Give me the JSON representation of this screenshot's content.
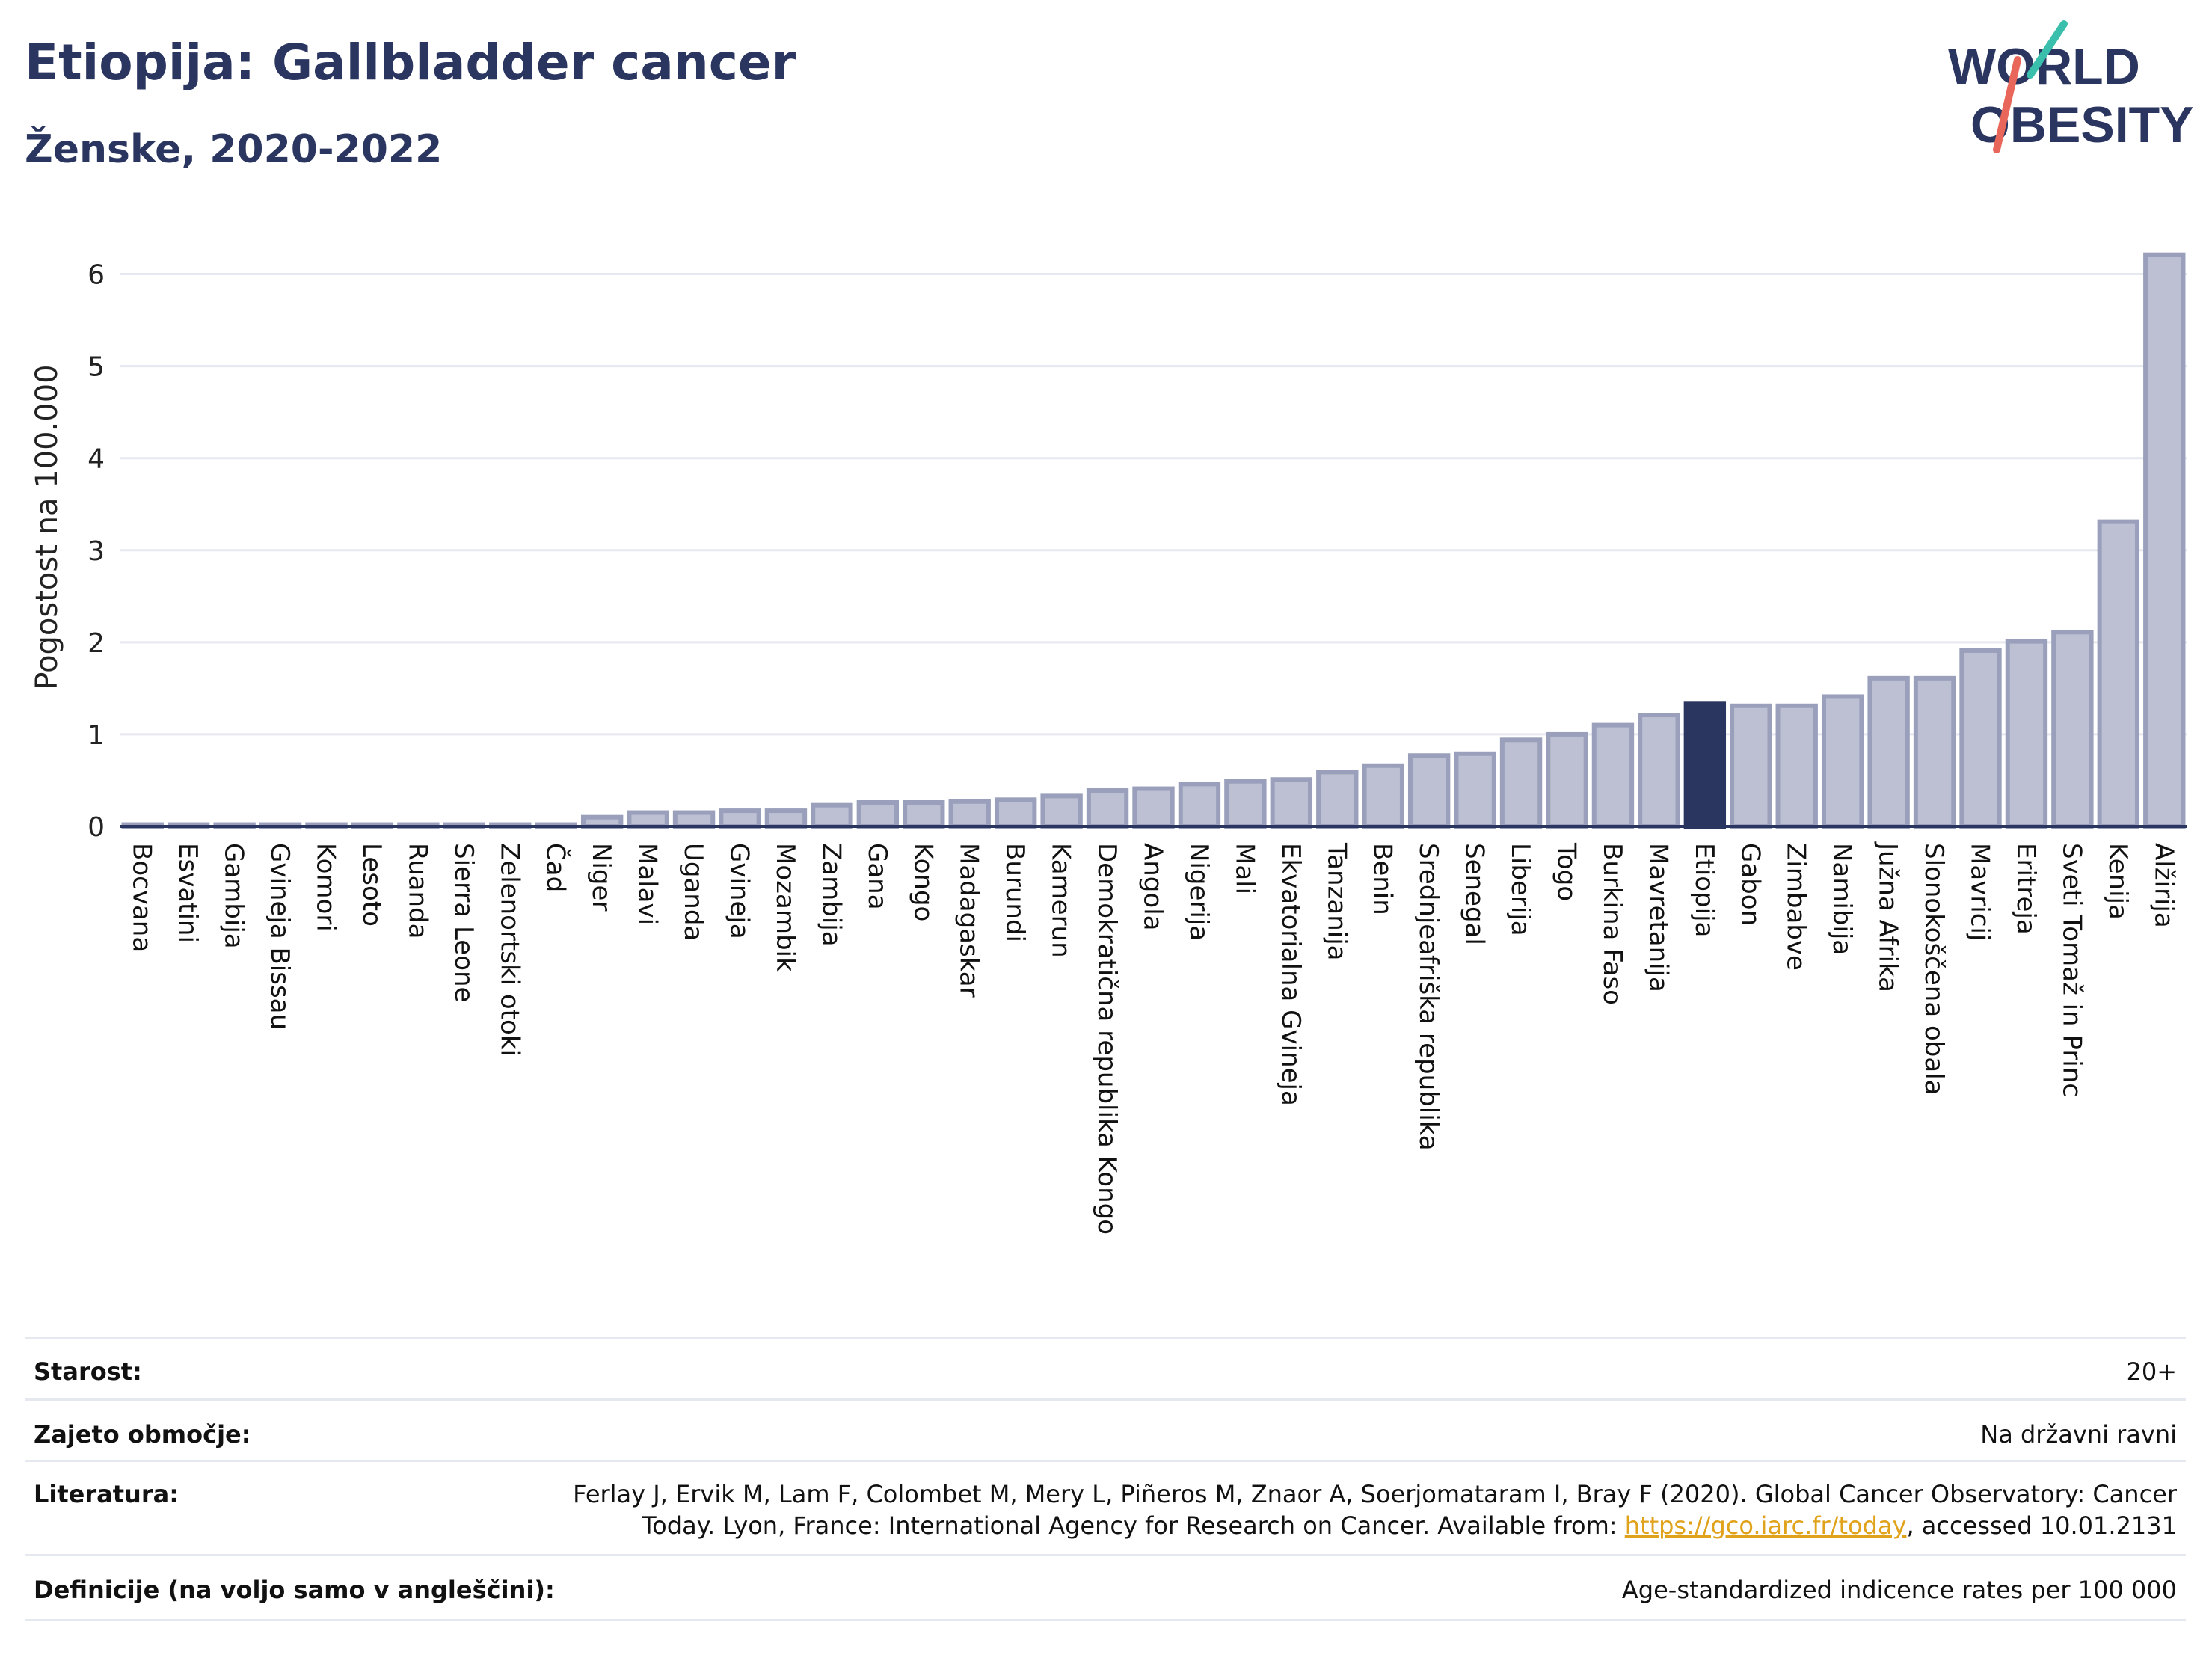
{
  "header": {
    "title": "Etiopija: Gallbladder cancer",
    "subtitle": "Ženske, 2020-2022"
  },
  "logo": {
    "line1": "WORLD",
    "line2": "OBESITY",
    "accent_teal": "#3bbfad",
    "accent_red": "#e8675a",
    "text_color": "#2a3560"
  },
  "colors": {
    "bar": "#bcc0d2",
    "bar_edge": "#9aa0bb",
    "highlight": "#2a3560",
    "grid": "#e6e8f0",
    "axis": "#2a3560"
  },
  "chart_data": {
    "type": "bar",
    "ylabel": "Pogostost na 100.000",
    "ylim": [
      0,
      6.5
    ],
    "yticks": [
      0,
      1,
      2,
      3,
      4,
      5,
      6
    ],
    "grid": true,
    "highlight": "Etiopija",
    "categories": [
      "Bocvana",
      "Esvatini",
      "Gambija",
      "Gvineja Bissau",
      "Komori",
      "Lesoto",
      "Ruanda",
      "Sierra Leone",
      "Zelenortski otoki",
      "Čad",
      "Niger",
      "Malavi",
      "Uganda",
      "Gvineja",
      "Mozambik",
      "Zambija",
      "Gana",
      "Kongo",
      "Madagaskar",
      "Burundi",
      "Kamerun",
      "Demokratična republika Kongo",
      "Angola",
      "Nigerija",
      "Mali",
      "Ekvatorialna Gvineja",
      "Tanzanija",
      "Benin",
      "Srednjeafriška republika",
      "Senegal",
      "Liberija",
      "Togo",
      "Burkina Faso",
      "Mavretanija",
      "Etiopija",
      "Gabon",
      "Zimbabve",
      "Namibija",
      "Južna Afrika",
      "Slonokoščena obala",
      "Mavricij",
      "Eritreja",
      "Sveti Tomaž in Princ",
      "Kenija",
      "Alžirija"
    ],
    "values": [
      0.02,
      0.02,
      0.02,
      0.02,
      0.02,
      0.02,
      0.02,
      0.02,
      0.02,
      0.02,
      0.1,
      0.15,
      0.15,
      0.17,
      0.17,
      0.23,
      0.26,
      0.26,
      0.27,
      0.29,
      0.33,
      0.39,
      0.41,
      0.46,
      0.49,
      0.51,
      0.59,
      0.66,
      0.77,
      0.79,
      0.94,
      1.0,
      1.1,
      1.21,
      1.33,
      1.31,
      1.31,
      1.41,
      1.61,
      1.61,
      1.91,
      2.01,
      2.11,
      3.31,
      6.21
    ]
  },
  "meta": {
    "age_label": "Starost:",
    "age_value": "20+",
    "coverage_label": "Zajeto območje:",
    "coverage_value": "Na državni ravni",
    "reference_label": "Literatura:",
    "reference_line1": "Ferlay J, Ervik M, Lam F, Colombet M, Mery L, Piñeros M, Znaor A, Soerjomataram I, Bray F (2020). Global Cancer Observatory: Cancer",
    "reference_line2_pre": "Today. Lyon, France: International Agency for Research on Cancer. Available from: ",
    "reference_link": "https://gco.iarc.fr/today",
    "reference_line2_post": ", accessed 10.01.2131",
    "definitions_label": "Definicije (na voljo samo v angleščini):",
    "definitions_value": "Age-standardized indicence rates per 100 000"
  }
}
